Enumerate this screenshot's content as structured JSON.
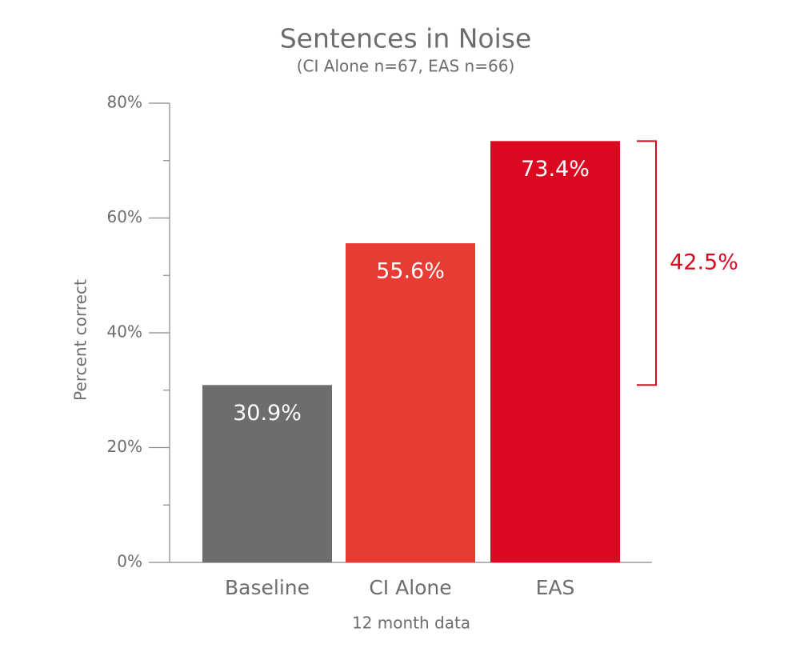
{
  "chart_data": {
    "type": "bar",
    "title": "Sentences in Noise",
    "subtitle": "(CI Alone n=67, EAS n=66)",
    "y_label": "Percent correct",
    "x_label": "12 month data",
    "categories": [
      "Baseline",
      "CI Alone",
      "EAS"
    ],
    "values": [
      30.9,
      55.6,
      73.4
    ],
    "value_labels": [
      "30.9%",
      "55.6%",
      "73.4%"
    ],
    "colors": [
      "#6d6d6d",
      "#e63c33",
      "#dc0820"
    ],
    "ylim": [
      0,
      80
    ],
    "yticks": [
      {
        "value": 0,
        "label": "0%"
      },
      {
        "value": 20,
        "label": "20%"
      },
      {
        "value": 40,
        "label": "40%"
      },
      {
        "value": 60,
        "label": "60%"
      },
      {
        "value": 80,
        "label": "80%"
      }
    ],
    "minor_yticks": [
      10,
      30,
      50,
      70
    ],
    "grid": false,
    "bracket": {
      "value": 42.5,
      "label": "42.5%",
      "color": "#dc0820"
    }
  }
}
